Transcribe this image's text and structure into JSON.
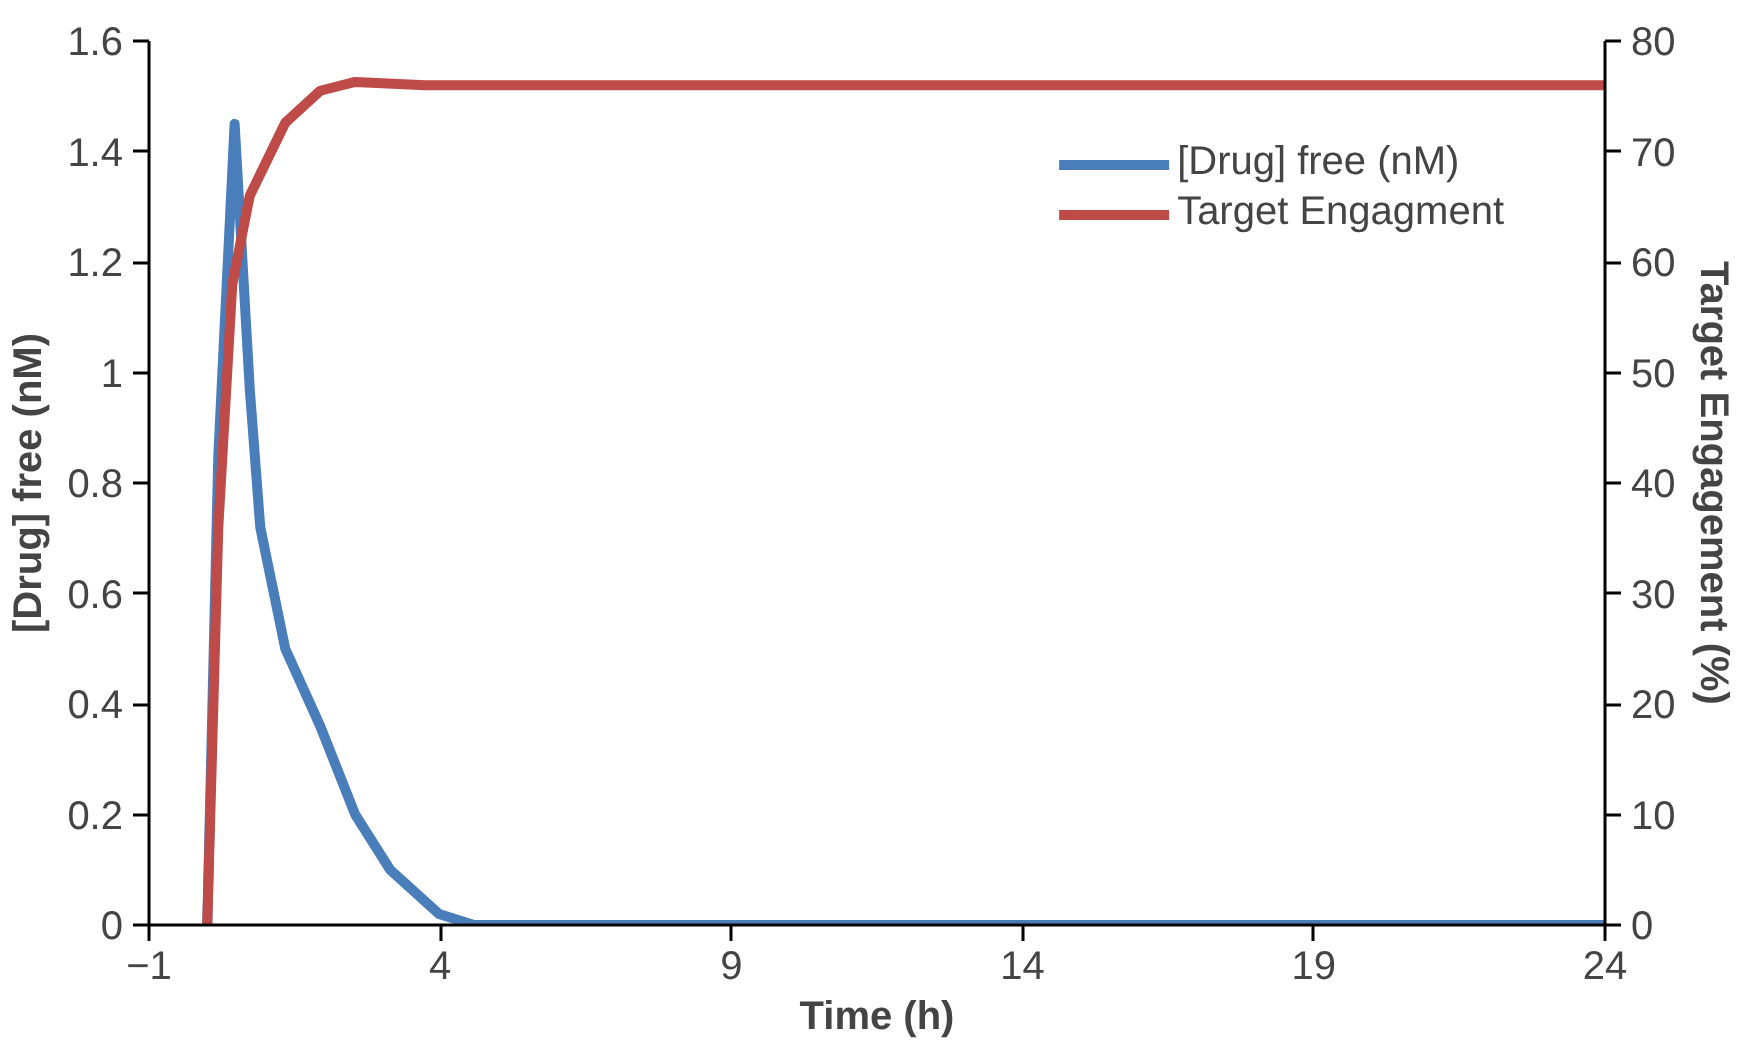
{
  "chart_data": {
    "type": "line",
    "xlabel": "Time (h)",
    "ylabel": "[Drug] free (nM)",
    "y2label": "Target Engagement (%)",
    "xlim": [
      -1,
      24
    ],
    "xticks": [
      -1,
      4,
      9,
      14,
      19,
      24
    ],
    "ylim": [
      0,
      1.6
    ],
    "yticks": [
      0,
      0.2,
      0.4,
      0.6,
      0.8,
      1,
      1.2,
      1.4,
      1.6
    ],
    "y2lim": [
      0,
      80
    ],
    "y2ticks": [
      0,
      10,
      20,
      30,
      40,
      50,
      60,
      70,
      80
    ],
    "grid": false,
    "legend": "top right",
    "marker": "none",
    "line_style": "solid",
    "series": [
      {
        "name": "[Drug] free (nM)",
        "color": "#4a7ebb",
        "x": [
          0,
          0.19,
          0.47,
          0.73,
          0.91,
          1.34,
          1.94,
          2.54,
          3.14,
          3.98,
          4.58,
          8,
          12,
          16,
          20,
          24
        ],
        "values": [
          0,
          0.85,
          1.45,
          0.97,
          0.72,
          0.5,
          0.36,
          0.2,
          0.1,
          0.02,
          0,
          0,
          0,
          0,
          0,
          0
        ]
      },
      {
        "name": "Target Engagment",
        "color": "#be4b48",
        "axis": "y2",
        "x": [
          0,
          0.19,
          0.43,
          0.73,
          1.34,
          1.94,
          2.54,
          3.74,
          8,
          12,
          16,
          20,
          24
        ],
        "values": [
          0,
          36,
          58,
          66,
          72.6,
          75.5,
          76.3,
          76,
          76,
          76,
          76,
          76,
          76
        ]
      }
    ]
  }
}
